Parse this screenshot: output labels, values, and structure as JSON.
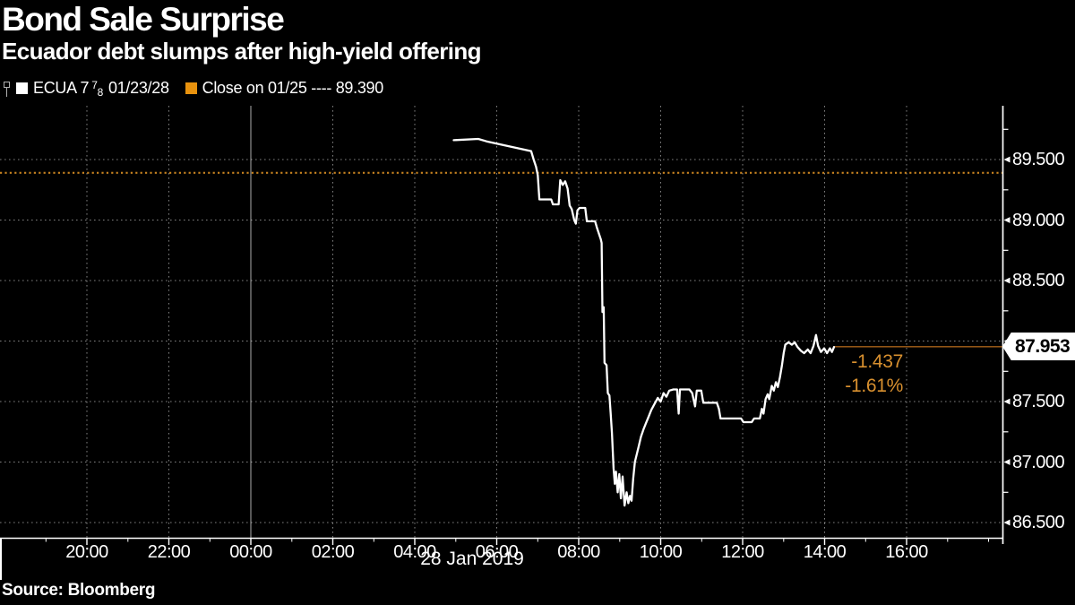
{
  "header": {
    "title": "Bond Sale Surprise",
    "subtitle": "Ecuador debt slumps after high-yield offering"
  },
  "legend": {
    "series": {
      "prefix": "ECUA 7",
      "frac_numerator": "7",
      "frac_denominator": "8",
      "suffix": "01/23/28",
      "swatch_color": "#ffffff"
    },
    "close": {
      "label": "Close on 01/25 ---- 89.390",
      "swatch_color": "#e8920e"
    }
  },
  "annotations": {
    "change_abs": "-1.437",
    "change_pct": "-1.61%"
  },
  "price_tag": {
    "value": "87.953"
  },
  "source": {
    "label": "Source: Bloomberg"
  },
  "chart_data": {
    "type": "line",
    "title": "Bond Sale Surprise",
    "subtitle": "Ecuador debt slumps after high-yield offering",
    "x_unit": "hours relative to midnight 28 Jan 2019 (negative = 27 Jan evening)",
    "xlim": [
      -6.1,
      18.4
    ],
    "ylim": [
      86.35,
      89.98
    ],
    "grid": "dotted",
    "legend_position": "top-left",
    "date_label": "28 Jan 2019",
    "midnight_separator_t": 0,
    "y_minor_step": 0.25,
    "x_minor_step": 1,
    "y_ticks": [
      {
        "value": 89.5,
        "label": "89.500"
      },
      {
        "value": 89.0,
        "label": "89.000"
      },
      {
        "value": 88.5,
        "label": "88.500"
      },
      {
        "value": 88.0,
        "label": "88.000"
      },
      {
        "value": 87.5,
        "label": "87.500"
      },
      {
        "value": 87.0,
        "label": "87.000"
      },
      {
        "value": 86.5,
        "label": "86.500"
      }
    ],
    "x_ticks": [
      {
        "t": -4,
        "label": "20:00"
      },
      {
        "t": -2,
        "label": "22:00"
      },
      {
        "t": 0,
        "label": "00:00"
      },
      {
        "t": 2,
        "label": "02:00"
      },
      {
        "t": 4,
        "label": "04:00"
      },
      {
        "t": 6,
        "label": "06:00"
      },
      {
        "t": 8,
        "label": "08:00"
      },
      {
        "t": 10,
        "label": "10:00"
      },
      {
        "t": 12,
        "label": "12:00"
      },
      {
        "t": 14,
        "label": "14:00"
      },
      {
        "t": 16,
        "label": "16:00"
      }
    ],
    "close_reference": {
      "label": "Close on 01/25",
      "value": 89.39,
      "color": "#c5811f"
    },
    "last_price": {
      "value": 87.953,
      "change_abs": -1.437,
      "change_pct": -1.61,
      "line_color": "#a8621a"
    },
    "series": [
      {
        "name": "ECUA 7 7/8 01/23/28",
        "color": "#ffffff",
        "points": [
          [
            4.95,
            89.66
          ],
          [
            5.55,
            89.67
          ],
          [
            5.75,
            89.65
          ],
          [
            6.84,
            89.57
          ],
          [
            6.9,
            89.5
          ],
          [
            6.96,
            89.44
          ],
          [
            7.0,
            89.37
          ],
          [
            7.04,
            89.17
          ],
          [
            7.33,
            89.17
          ],
          [
            7.37,
            89.13
          ],
          [
            7.51,
            89.13
          ],
          [
            7.55,
            89.33
          ],
          [
            7.61,
            89.29
          ],
          [
            7.67,
            89.32
          ],
          [
            7.73,
            89.26
          ],
          [
            7.78,
            89.12
          ],
          [
            7.83,
            89.09
          ],
          [
            7.89,
            89.0
          ],
          [
            7.93,
            88.97
          ],
          [
            7.97,
            89.08
          ],
          [
            8.02,
            89.1
          ],
          [
            8.16,
            89.1
          ],
          [
            8.2,
            88.99
          ],
          [
            8.4,
            88.99
          ],
          [
            8.45,
            88.93
          ],
          [
            8.5,
            88.88
          ],
          [
            8.54,
            88.84
          ],
          [
            8.56,
            88.81
          ],
          [
            8.58,
            88.24
          ],
          [
            8.61,
            88.28
          ],
          [
            8.63,
            87.82
          ],
          [
            8.68,
            87.8
          ],
          [
            8.71,
            87.57
          ],
          [
            8.75,
            87.55
          ],
          [
            8.78,
            87.4
          ],
          [
            8.81,
            87.24
          ],
          [
            8.85,
            86.95
          ],
          [
            8.88,
            86.82
          ],
          [
            8.91,
            86.92
          ],
          [
            8.95,
            86.75
          ],
          [
            8.99,
            86.9
          ],
          [
            9.03,
            86.7
          ],
          [
            9.07,
            86.88
          ],
          [
            9.12,
            86.64
          ],
          [
            9.17,
            86.75
          ],
          [
            9.21,
            86.66
          ],
          [
            9.25,
            86.72
          ],
          [
            9.29,
            86.68
          ],
          [
            9.33,
            86.86
          ],
          [
            9.37,
            87.0
          ],
          [
            9.42,
            87.07
          ],
          [
            9.47,
            87.14
          ],
          [
            9.52,
            87.21
          ],
          [
            9.58,
            87.27
          ],
          [
            9.64,
            87.32
          ],
          [
            9.7,
            87.37
          ],
          [
            9.77,
            87.43
          ],
          [
            9.85,
            87.48
          ],
          [
            9.93,
            87.53
          ],
          [
            10.0,
            87.5
          ],
          [
            10.07,
            87.57
          ],
          [
            10.14,
            87.54
          ],
          [
            10.21,
            87.59
          ],
          [
            10.31,
            87.6
          ],
          [
            10.4,
            87.6
          ],
          [
            10.44,
            87.4
          ],
          [
            10.47,
            87.6
          ],
          [
            10.7,
            87.6
          ],
          [
            10.77,
            87.57
          ],
          [
            10.84,
            87.46
          ],
          [
            10.88,
            87.59
          ],
          [
            10.99,
            87.59
          ],
          [
            11.04,
            87.49
          ],
          [
            11.37,
            87.49
          ],
          [
            11.42,
            87.44
          ],
          [
            11.46,
            87.36
          ],
          [
            11.96,
            87.36
          ],
          [
            12.02,
            87.33
          ],
          [
            12.22,
            87.33
          ],
          [
            12.28,
            87.36
          ],
          [
            12.42,
            87.36
          ],
          [
            12.47,
            87.44
          ],
          [
            12.51,
            87.4
          ],
          [
            12.56,
            87.52
          ],
          [
            12.61,
            87.56
          ],
          [
            12.65,
            87.52
          ],
          [
            12.71,
            87.63
          ],
          [
            12.76,
            87.59
          ],
          [
            12.81,
            87.66
          ],
          [
            12.86,
            87.62
          ],
          [
            12.91,
            87.7
          ],
          [
            12.96,
            87.8
          ],
          [
            13.0,
            87.9
          ],
          [
            13.04,
            87.97
          ],
          [
            13.12,
            87.99
          ],
          [
            13.2,
            87.97
          ],
          [
            13.27,
            87.99
          ],
          [
            13.34,
            87.95
          ],
          [
            13.42,
            87.92
          ],
          [
            13.5,
            87.9
          ],
          [
            13.59,
            87.93
          ],
          [
            13.66,
            87.9
          ],
          [
            13.73,
            87.96
          ],
          [
            13.79,
            88.05
          ],
          [
            13.84,
            87.96
          ],
          [
            13.91,
            87.91
          ],
          [
            13.99,
            87.94
          ],
          [
            14.06,
            87.9
          ],
          [
            14.13,
            87.94
          ],
          [
            14.18,
            87.91
          ],
          [
            14.23,
            87.95
          ]
        ]
      }
    ]
  }
}
